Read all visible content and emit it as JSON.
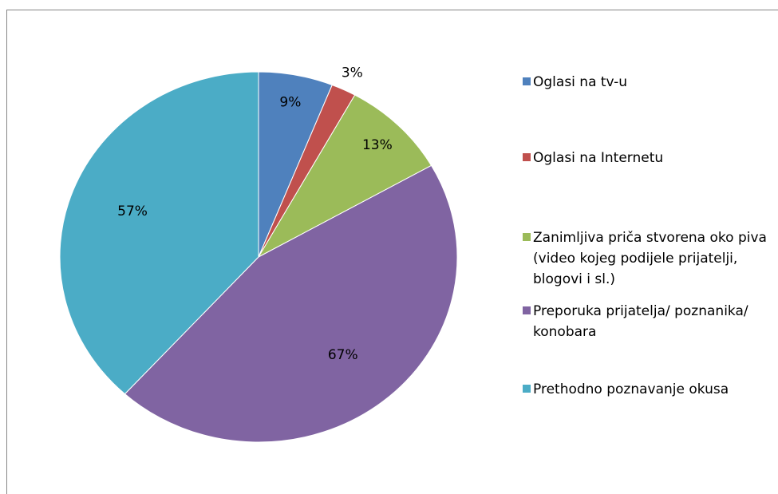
{
  "chart_data": {
    "type": "pie",
    "categories": [
      "Oglasi na tv-u",
      "Oglasi na Internetu",
      "Zanimljiva priča stvorena oko piva (video kojeg podijele prijatelji, blogovi i sl.)",
      "Preporuka prijatelja/ poznanika/ konobara",
      "Prethodno poznavanje okusa"
    ],
    "values": [
      9,
      3,
      13,
      67,
      57
    ],
    "value_labels": [
      "9%",
      "3%",
      "13%",
      "67%",
      "57%"
    ],
    "colors": [
      "#4f81bd",
      "#c0504d",
      "#9bbb59",
      "#8064a2",
      "#4bacc6"
    ],
    "legend": "right"
  }
}
